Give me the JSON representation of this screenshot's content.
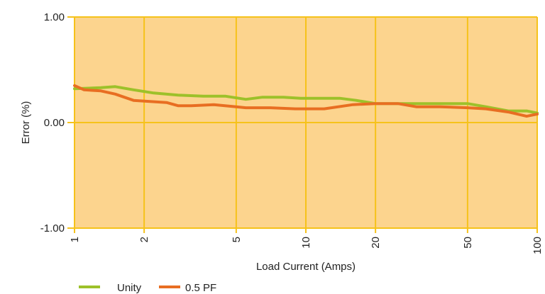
{
  "chart_data": {
    "type": "line",
    "xlabel": "Load Current (Amps)",
    "ylabel": "Error (%)",
    "x_scale": "log",
    "xlim": [
      1,
      100
    ],
    "ylim": [
      -1.0,
      1.0
    ],
    "x_ticks": [
      1,
      2,
      5,
      10,
      20,
      50,
      100
    ],
    "x_tick_labels": [
      "1",
      "2",
      "5",
      "10",
      "20",
      "50",
      "100"
    ],
    "y_ticks": [
      -1.0,
      0.0,
      1.0
    ],
    "y_tick_labels": [
      "-1.00",
      "0.00",
      "1.00"
    ],
    "grid": true,
    "legend_position": "bottom-left",
    "colors": {
      "plot_background": "#fcd48e",
      "grid": "#f6c21a",
      "zero_line": "#f6c21a",
      "axis": "#f6c21a"
    },
    "series": [
      {
        "name": "Unity",
        "color": "#9dc12a",
        "x": [
          1.0,
          1.3,
          1.5,
          1.8,
          2.2,
          2.8,
          3.6,
          4.5,
          5.5,
          6.5,
          8.0,
          9.5,
          12.0,
          14.0,
          16.5,
          20.0,
          25.0,
          30.0,
          40.0,
          50.0,
          60.0,
          75.0,
          90.0,
          100.0
        ],
        "y": [
          0.32,
          0.33,
          0.34,
          0.31,
          0.28,
          0.26,
          0.25,
          0.25,
          0.22,
          0.24,
          0.24,
          0.23,
          0.23,
          0.23,
          0.21,
          0.18,
          0.18,
          0.18,
          0.18,
          0.18,
          0.15,
          0.11,
          0.11,
          0.09
        ]
      },
      {
        "name": "0.5 PF",
        "color": "#e86e22",
        "x": [
          1.0,
          1.1,
          1.3,
          1.5,
          1.8,
          2.5,
          2.8,
          3.2,
          4.0,
          5.0,
          5.5,
          7.0,
          9.0,
          11.0,
          12.0,
          16.0,
          20.0,
          25.0,
          30.0,
          38.0,
          50.0,
          60.0,
          75.0,
          90.0,
          100.0
        ],
        "y": [
          0.35,
          0.31,
          0.3,
          0.27,
          0.21,
          0.19,
          0.16,
          0.16,
          0.17,
          0.15,
          0.14,
          0.14,
          0.13,
          0.13,
          0.13,
          0.17,
          0.18,
          0.18,
          0.15,
          0.15,
          0.14,
          0.13,
          0.1,
          0.06,
          0.08
        ]
      }
    ]
  }
}
